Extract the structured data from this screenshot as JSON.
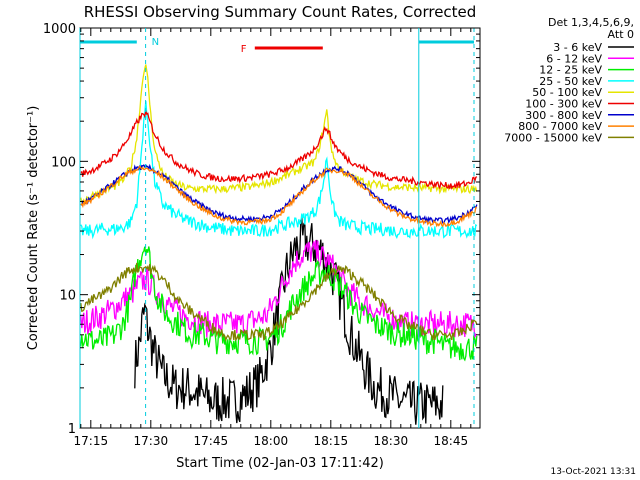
{
  "chart_data": {
    "type": "line",
    "title": "RHESSI Observing Summary Count Rates, Corrected",
    "ylabel": "Corrected Count Rate (s⁻¹ detector⁻¹)",
    "xlabel": "Start Time (02-Jan-03 17:11:42)",
    "footer": "13-Oct-2021 13:31",
    "yscale": "log",
    "ylim": [
      1,
      1000
    ],
    "xlim_minutes": [
      -2.7,
      97.3
    ],
    "x_tick_labels": [
      "17:15",
      "17:30",
      "17:45",
      "18:00",
      "18:15",
      "18:30",
      "18:45"
    ],
    "x_tick_minutes": [
      0,
      15,
      30,
      45,
      60,
      75,
      90
    ],
    "y_tick_labels": [
      "1",
      "10",
      "100",
      "1000"
    ],
    "y_tick_values": [
      1,
      10,
      100,
      1000
    ],
    "grid": false,
    "legend_title": [
      "Det 1,3,4,5,6,9,",
      "Att 0"
    ],
    "legend_position": "right",
    "series": [
      {
        "name": "3 - 6 keV",
        "color": "#000000",
        "x": [
          11,
          12,
          13,
          13.7,
          14,
          15,
          16,
          18,
          21,
          24,
          27,
          30,
          33,
          36,
          39,
          42,
          45,
          47,
          49,
          51,
          53,
          55,
          57,
          59,
          61,
          63,
          65,
          68,
          71,
          74,
          77,
          80,
          83,
          86,
          88
        ],
        "y": [
          3,
          4,
          6.5,
          7.5,
          6,
          4.5,
          3.5,
          2.5,
          2,
          2,
          1.8,
          1.6,
          1.6,
          1.6,
          1.8,
          2.2,
          4,
          8,
          15,
          22,
          25,
          24,
          22,
          18,
          13,
          8,
          5,
          3,
          2,
          1.8,
          1.6,
          1.5,
          1.5,
          1.5,
          1.5
        ]
      },
      {
        "name": "6 - 12 keV",
        "color": "#ff00ff",
        "x": [
          -2.5,
          0,
          3,
          6,
          8,
          10,
          12,
          13.7,
          15,
          17,
          20,
          23,
          26,
          29,
          32,
          35,
          38,
          41,
          44,
          46,
          48,
          50,
          52,
          54,
          56,
          58,
          60,
          62,
          64,
          67,
          70,
          73,
          76,
          79,
          82,
          85,
          88,
          91,
          94,
          96.5
        ],
        "y": [
          6,
          6.5,
          7,
          8,
          9,
          10,
          12,
          13,
          12,
          10,
          8,
          7,
          6.5,
          6,
          6,
          6,
          6,
          6.5,
          7,
          9,
          12,
          16,
          19,
          21,
          21,
          19,
          17,
          14,
          11,
          9,
          8,
          7,
          6.5,
          6,
          6,
          6,
          6,
          6,
          6,
          6
        ]
      },
      {
        "name": "12 - 25 keV",
        "color": "#00ee00",
        "x": [
          -2.5,
          0,
          3,
          6,
          8,
          10,
          11,
          12,
          13,
          13.7,
          14.5,
          15.5,
          17,
          19,
          22,
          25,
          28,
          31,
          34,
          37,
          40,
          43,
          46,
          48,
          50,
          52,
          54,
          56,
          58,
          60,
          62,
          64,
          66,
          68,
          71,
          74,
          77,
          80,
          83,
          86,
          89,
          92,
          96.5
        ],
        "y": [
          5,
          4.5,
          4.5,
          5,
          6,
          9,
          14,
          18,
          22,
          25,
          20,
          13,
          9,
          7,
          6,
          5,
          5,
          4.5,
          4.5,
          4.5,
          4.5,
          4.5,
          5,
          6,
          8,
          10,
          12,
          14,
          15,
          14,
          12,
          10,
          8,
          7,
          6,
          5.5,
          5,
          5,
          4.5,
          4.5,
          4,
          4,
          4
        ]
      },
      {
        "name": "25 - 50 keV",
        "color": "#00ffff",
        "x": [
          -2.5,
          0,
          3,
          6,
          8,
          10,
          11.5,
          12.5,
          13.2,
          13.7,
          14.3,
          15,
          16,
          18,
          21,
          24,
          27,
          30,
          33,
          36,
          39,
          42,
          45,
          48,
          51,
          54,
          56,
          57.5,
          58.5,
          59,
          59.5,
          60.5,
          62,
          64,
          67,
          70,
          73,
          76,
          79,
          82,
          85,
          88,
          91,
          94,
          96.5
        ],
        "y": [
          30,
          30,
          31,
          31,
          32,
          35,
          50,
          100,
          200,
          260,
          200,
          120,
          70,
          48,
          40,
          36,
          34,
          32,
          31,
          30,
          30,
          30,
          31,
          33,
          35,
          38,
          42,
          55,
          80,
          110,
          75,
          45,
          36,
          33,
          32,
          31,
          31,
          30,
          30,
          30,
          30,
          30,
          30,
          30,
          30
        ]
      },
      {
        "name": "50 - 100 keV",
        "color": "#e5e500",
        "x": [
          -2.5,
          0,
          3,
          6,
          8,
          10,
          11.5,
          12.5,
          13.2,
          13.7,
          14.3,
          15,
          16,
          18,
          21,
          24,
          27,
          30,
          33,
          36,
          39,
          42,
          45,
          48,
          51,
          54,
          56,
          57.5,
          58.5,
          59,
          59.5,
          60.5,
          62,
          64,
          67,
          70,
          73,
          76,
          79,
          82,
          85,
          88,
          91,
          94,
          96.5
        ],
        "y": [
          50,
          55,
          60,
          65,
          72,
          90,
          150,
          300,
          480,
          520,
          400,
          220,
          120,
          80,
          68,
          63,
          62,
          62,
          62,
          63,
          64,
          66,
          70,
          76,
          84,
          92,
          100,
          140,
          200,
          240,
          170,
          110,
          90,
          80,
          72,
          68,
          66,
          64,
          64,
          63,
          63,
          62,
          62,
          62,
          62
        ]
      },
      {
        "name": "100 - 300 keV",
        "color": "#ee0000",
        "x": [
          -2.5,
          0,
          3,
          6,
          8,
          10,
          11.5,
          12.5,
          13.2,
          13.7,
          14.3,
          15,
          16,
          18,
          21,
          24,
          27,
          30,
          33,
          36,
          39,
          42,
          45,
          48,
          51,
          54,
          56,
          57.5,
          58.5,
          59,
          59.5,
          60.5,
          62,
          64,
          67,
          70,
          73,
          76,
          79,
          82,
          85,
          88,
          91,
          94,
          96.5
        ],
        "y": [
          80,
          85,
          95,
          110,
          130,
          160,
          195,
          215,
          225,
          230,
          215,
          190,
          160,
          125,
          100,
          88,
          80,
          76,
          74,
          74,
          75,
          77,
          80,
          86,
          95,
          110,
          125,
          150,
          170,
          180,
          165,
          140,
          120,
          105,
          92,
          84,
          78,
          74,
          72,
          70,
          68,
          66,
          66,
          68,
          75
        ]
      },
      {
        "name": "300 - 800 keV",
        "color": "#0000cc",
        "x": [
          -2.5,
          0,
          3,
          6,
          8,
          10,
          12,
          13.7,
          15,
          17,
          20,
          23,
          26,
          29,
          32,
          35,
          38,
          41,
          44,
          47,
          50,
          53,
          56,
          59,
          62,
          65,
          68,
          71,
          74,
          77,
          80,
          83,
          86,
          89,
          92,
          94,
          96.5
        ],
        "y": [
          48,
          52,
          60,
          70,
          78,
          85,
          90,
          90,
          88,
          82,
          70,
          58,
          50,
          44,
          40,
          38,
          37,
          37,
          38,
          42,
          50,
          62,
          75,
          87,
          88,
          80,
          66,
          55,
          48,
          42,
          39,
          37,
          36,
          36,
          38,
          41,
          46
        ]
      },
      {
        "name": "800 - 7000 keV",
        "color": "#ff8000",
        "x": [
          -2.5,
          0,
          3,
          6,
          8,
          10,
          12,
          13.7,
          15,
          17,
          20,
          23,
          26,
          29,
          32,
          35,
          38,
          41,
          44,
          47,
          50,
          53,
          56,
          59,
          62,
          65,
          68,
          71,
          74,
          77,
          80,
          83,
          86,
          89,
          92,
          94,
          96.5
        ],
        "y": [
          47,
          51,
          59,
          69,
          77,
          84,
          88,
          88,
          86,
          80,
          68,
          56,
          48,
          42,
          38,
          36,
          35,
          35,
          36,
          40,
          48,
          60,
          73,
          85,
          86,
          78,
          64,
          53,
          46,
          40,
          37,
          35,
          34,
          34,
          36,
          39,
          44
        ]
      },
      {
        "name": "7000 - 15000 keV",
        "color": "#808000",
        "x": [
          -2.5,
          0,
          3,
          6,
          8,
          10,
          12,
          14,
          16,
          18,
          20,
          22,
          25,
          28,
          31,
          34,
          37,
          40,
          43,
          46,
          49,
          52,
          55,
          58,
          60,
          62,
          64,
          66,
          68,
          70,
          73,
          76,
          79,
          82,
          85,
          88,
          91,
          94,
          96.5
        ],
        "y": [
          8,
          9,
          10,
          12,
          14,
          15.5,
          16,
          16,
          15,
          13,
          11,
          9,
          7.5,
          6.5,
          5.5,
          5,
          5,
          5,
          5,
          5.5,
          6.5,
          8,
          10,
          12.5,
          14.5,
          15.5,
          15,
          13.5,
          12,
          10.5,
          8.5,
          7,
          6,
          5.5,
          5,
          5,
          5,
          5.5,
          6.5
        ]
      }
    ],
    "annotations": {
      "flag_label": "F",
      "flag_color": "#ee0000",
      "flag_x_minutes": [
        41,
        58
      ],
      "top_bar_color": "#00ccdd",
      "n_label": "N",
      "night_bars_minutes": [
        [
          -2.7,
          11.5
        ],
        [
          82,
          95.8
        ]
      ],
      "solid_vertical_minutes": [
        -2.7,
        82
      ],
      "dashed_vertical_minutes": [
        13.7,
        95.8
      ]
    }
  }
}
